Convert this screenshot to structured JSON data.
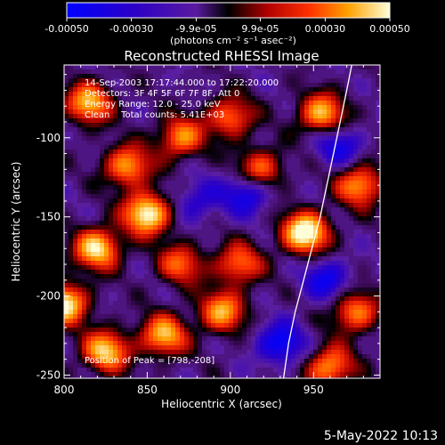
{
  "colorbar": {
    "tick_labels": [
      "-0.00050",
      "-0.00030",
      "-9.9e-05",
      "9.9e-05",
      "0.00030",
      "0.00050"
    ],
    "tick_values": [
      -0.0005,
      -0.0003,
      -9.9e-05,
      9.9e-05,
      0.0003,
      0.0005
    ],
    "unit_label": "(photons cm⁻² s⁻¹ asec⁻²)",
    "range": [
      -0.0005,
      0.0005
    ]
  },
  "chart_data": {
    "type": "heatmap",
    "title": "Reconstructed RHESSI Image",
    "xlabel": "Heliocentric X (arcsec)",
    "ylabel": "Heliocentric Y (arcsec)",
    "xlim": [
      800,
      990
    ],
    "ylim": [
      -252,
      -54
    ],
    "x_ticks": [
      800,
      850,
      900,
      950
    ],
    "x_tick_labels": [
      "800",
      "850",
      "900",
      "950"
    ],
    "y_ticks": [
      -250,
      -200,
      -150,
      -100
    ],
    "y_tick_labels": [
      "-250",
      "-200",
      "-150",
      "-100"
    ],
    "annotations": [
      "14-Sep-2003 17:17:44.000 to 17:22:20.000",
      "Detectors: 3F 4F 5F 6F 7F 8F, Att 0",
      "Energy Range: 12.0 - 25.0 keV",
      "Clean    Total counts: 5.41E+03"
    ],
    "peak_label": "Position of Peak = [798,-208]",
    "peak_position": [
      798,
      -208
    ],
    "limb_curve": {
      "x": [
        932,
        935,
        939,
        944,
        949,
        954,
        958,
        962,
        966,
        970,
        973
      ],
      "y": [
        -252,
        -230,
        -210,
        -190,
        -170,
        -150,
        -130,
        -110,
        -90,
        -70,
        -54
      ]
    },
    "bright_sources": [
      {
        "x": 850,
        "y": -148,
        "level": 0.95
      },
      {
        "x": 945,
        "y": -160,
        "level": 1.0
      },
      {
        "x": 800,
        "y": -205,
        "level": 0.9
      },
      {
        "x": 815,
        "y": -78,
        "level": 0.75
      },
      {
        "x": 838,
        "y": -118,
        "level": 0.7
      },
      {
        "x": 870,
        "y": -100,
        "level": 0.65
      },
      {
        "x": 900,
        "y": -87,
        "level": 0.6
      },
      {
        "x": 918,
        "y": -120,
        "level": 0.6
      },
      {
        "x": 955,
        "y": -85,
        "level": 0.75
      },
      {
        "x": 978,
        "y": -130,
        "level": 0.7
      },
      {
        "x": 820,
        "y": -170,
        "level": 0.85
      },
      {
        "x": 825,
        "y": -235,
        "level": 0.8
      },
      {
        "x": 860,
        "y": -225,
        "level": 0.75
      },
      {
        "x": 895,
        "y": -210,
        "level": 0.7
      },
      {
        "x": 905,
        "y": -180,
        "level": 0.6
      },
      {
        "x": 975,
        "y": -210,
        "level": 0.65
      },
      {
        "x": 960,
        "y": -245,
        "level": 0.7
      },
      {
        "x": 870,
        "y": -180,
        "level": 0.55
      }
    ],
    "dark_sources": [
      {
        "x": 930,
        "y": -230,
        "level": 0.9
      },
      {
        "x": 910,
        "y": -135,
        "level": 0.8
      },
      {
        "x": 958,
        "y": -190,
        "level": 0.75
      },
      {
        "x": 965,
        "y": -105,
        "level": 0.7
      },
      {
        "x": 880,
        "y": -140,
        "level": 0.55
      }
    ]
  },
  "footer": {
    "date": "5-May-2022 10:13"
  }
}
